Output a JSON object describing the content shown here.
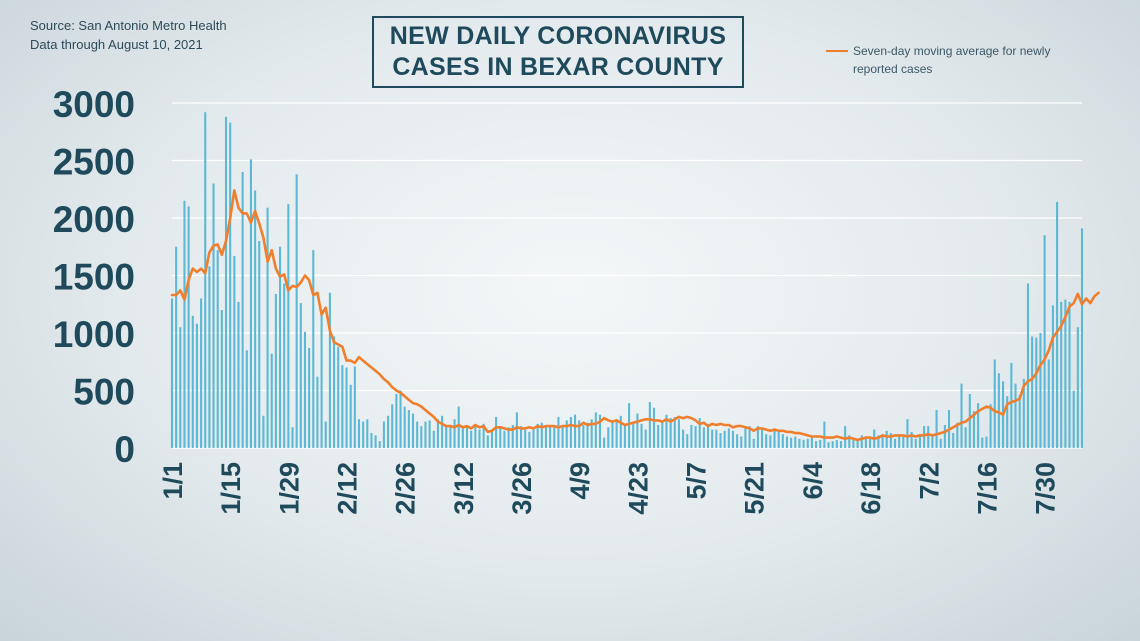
{
  "source": {
    "line1": "Source: San Antonio Metro Health",
    "line2": "Data through  August 10, 2021"
  },
  "title": {
    "line1": "NEW DAILY CORONAVIRUS",
    "line2": "CASES IN BEXAR COUNTY"
  },
  "legend": {
    "text_line1": "Seven-day moving average for newly",
    "text_line2": "reported cases"
  },
  "colors": {
    "bar": "#5cb8d4",
    "line": "#f07f2d",
    "text": "#1f4a5c",
    "grid": "#ffffff"
  },
  "chart_data": {
    "type": "bar",
    "title": "NEW DAILY CORONAVIRUS CASES IN BEXAR COUNTY",
    "xlabel": "",
    "ylabel": "",
    "ylim": [
      0,
      3000
    ],
    "yticks": [
      "0",
      "500",
      "1000",
      "1500",
      "2000",
      "2500",
      "3000"
    ],
    "xticks": [
      "1/1",
      "1/15",
      "1/29",
      "2/12",
      "2/26",
      "3/12",
      "3/26",
      "4/9",
      "4/23",
      "5/7",
      "5/21",
      "6/4",
      "6/18",
      "7/2",
      "7/16",
      "7/30"
    ],
    "xtick_day_index": [
      0,
      14,
      28,
      42,
      56,
      70,
      84,
      98,
      112,
      126,
      140,
      154,
      168,
      182,
      196,
      210
    ],
    "grid": true,
    "legend_position": "top-right",
    "series": [
      {
        "name": "",
        "kind": "bar",
        "values": [
          1300,
          1750,
          1050,
          2150,
          2100,
          1150,
          1080,
          1300,
          2920,
          1580,
          2300,
          1720,
          1200,
          2880,
          2830,
          1670,
          1270,
          2400,
          850,
          2510,
          2240,
          1800,
          280,
          2090,
          820,
          1340,
          1750,
          1430,
          2120,
          180,
          2380,
          1260,
          1010,
          870,
          1720,
          620,
          1200,
          230,
          1350,
          970,
          880,
          720,
          700,
          550,
          710,
          250,
          230,
          250,
          130,
          110,
          60,
          230,
          280,
          380,
          470,
          500,
          360,
          330,
          300,
          230,
          190,
          230,
          240,
          150,
          250,
          280,
          200,
          180,
          250,
          360,
          170,
          190,
          150,
          190,
          160,
          210,
          110,
          150,
          270,
          190,
          150,
          180,
          200,
          310,
          190,
          160,
          140,
          160,
          210,
          220,
          180,
          190,
          200,
          270,
          180,
          240,
          270,
          290,
          240,
          200,
          220,
          250,
          310,
          290,
          90,
          180,
          240,
          250,
          280,
          200,
          390,
          220,
          300,
          210,
          160,
          400,
          350,
          200,
          230,
          290,
          260,
          270,
          250,
          160,
          120,
          200,
          190,
          260,
          180,
          210,
          160,
          160,
          130,
          150,
          170,
          150,
          120,
          100,
          170,
          190,
          80,
          190,
          160,
          120,
          110,
          150,
          160,
          120,
          100,
          90,
          100,
          80,
          70,
          80,
          90,
          60,
          70,
          230,
          50,
          60,
          70,
          60,
          190,
          110,
          70,
          80,
          110,
          80,
          100,
          160,
          110,
          120,
          150,
          130,
          80,
          110,
          100,
          250,
          140,
          80,
          110,
          190,
          190,
          100,
          330,
          80,
          200,
          330,
          130,
          220,
          560,
          180,
          470,
          320,
          390,
          90,
          100,
          380,
          770,
          650,
          580,
          450,
          740,
          560,
          460,
          600,
          1430,
          970,
          960,
          1000,
          1850,
          770,
          1240,
          2140,
          1270,
          1290,
          1270,
          500,
          1050,
          1910
        ]
      },
      {
        "name": "Seven-day moving average for newly reported cases",
        "kind": "line",
        "values": [
          1330,
          1330,
          1370,
          1290,
          1460,
          1560,
          1530,
          1560,
          1520,
          1700,
          1760,
          1770,
          1680,
          1800,
          2000,
          2240,
          2090,
          2040,
          2040,
          1960,
          2060,
          1950,
          1830,
          1620,
          1720,
          1560,
          1490,
          1510,
          1370,
          1410,
          1400,
          1440,
          1500,
          1460,
          1330,
          1350,
          1160,
          1220,
          1020,
          920,
          900,
          880,
          760,
          760,
          740,
          790,
          760,
          730,
          700,
          670,
          640,
          600,
          570,
          530,
          500,
          480,
          450,
          420,
          390,
          380,
          360,
          330,
          300,
          270,
          230,
          210,
          190,
          190,
          180,
          200,
          180,
          190,
          170,
          200,
          180,
          190,
          140,
          150,
          180,
          180,
          170,
          160,
          160,
          180,
          170,
          170,
          180,
          170,
          190,
          180,
          190,
          190,
          190,
          180,
          190,
          190,
          200,
          190,
          190,
          220,
          200,
          210,
          210,
          230,
          260,
          240,
          230,
          240,
          220,
          200,
          210,
          220,
          230,
          240,
          250,
          250,
          240,
          240,
          230,
          250,
          230,
          250,
          270,
          260,
          270,
          260,
          240,
          210,
          220,
          190,
          210,
          200,
          210,
          200,
          200,
          180,
          190,
          190,
          180,
          170,
          150,
          170,
          170,
          160,
          150,
          160,
          150,
          150,
          140,
          140,
          130,
          130,
          120,
          110,
          100,
          100,
          100,
          90,
          90,
          90,
          100,
          90,
          80,
          90,
          80,
          70,
          80,
          90,
          90,
          80,
          90,
          110,
          100,
          100,
          110,
          110,
          110,
          100,
          110,
          100,
          110,
          110,
          120,
          110,
          120,
          130,
          140,
          160,
          180,
          200,
          220,
          230,
          260,
          290,
          320,
          340,
          360,
          350,
          320,
          310,
          290,
          380,
          400,
          410,
          430,
          540,
          580,
          600,
          650,
          720,
          770,
          850,
          960,
          1010,
          1060,
          1140,
          1230,
          1260,
          1340,
          1250,
          1300,
          1260,
          1320,
          1350
        ]
      }
    ]
  }
}
